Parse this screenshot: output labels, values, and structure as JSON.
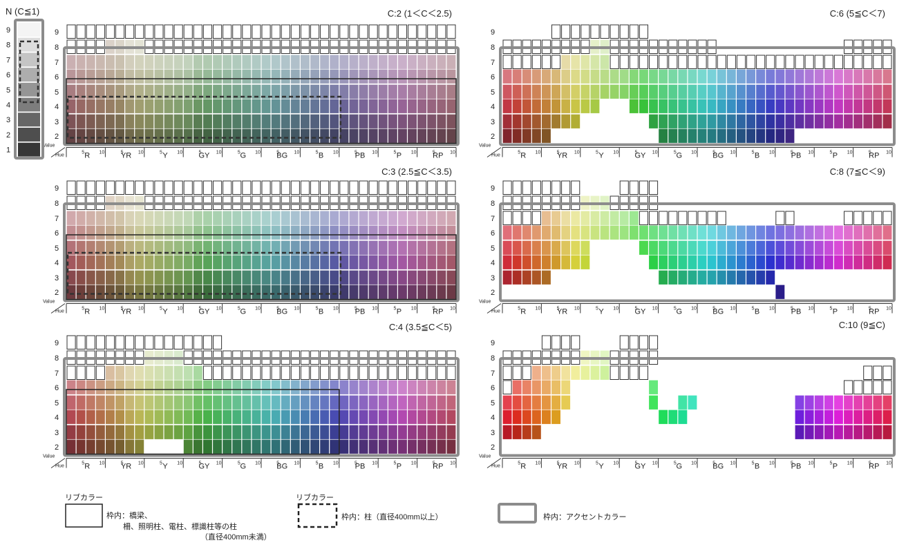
{
  "neutral": {
    "title": "N (C≦1)",
    "values": [
      "9",
      "8",
      "7",
      "6",
      "5",
      "4",
      "3",
      "2",
      "1"
    ]
  },
  "panels": [
    {
      "id": "c2",
      "title": "C:2 (1＜C＜2.5)"
    },
    {
      "id": "c3",
      "title": "C:3 (2.5≦C＜3.5)"
    },
    {
      "id": "c4",
      "title": "C:4 (3.5≦C＜5)"
    },
    {
      "id": "c6",
      "title": "C:6 (5≦C＜7)"
    },
    {
      "id": "c8",
      "title": "C:8 (7≦C＜9)"
    },
    {
      "id": "c10",
      "title": "C:10 (9≦C)"
    }
  ],
  "axis": {
    "value_label": "Value",
    "hue_label": "Hue",
    "values": [
      "9",
      "8",
      "7",
      "6",
      "5",
      "4",
      "3",
      "2"
    ],
    "hue_groups": [
      "R",
      "YR",
      "Y",
      "GY",
      "G",
      "BG",
      "B",
      "PB",
      "P",
      "RP"
    ],
    "hue_5": "5",
    "hue_10": "10"
  },
  "legend": {
    "solid": {
      "title": "リブカラー",
      "line1": "枠内：橋梁、",
      "line2": "柵、照明柱、電柱、標識柱等の柱",
      "line3": "（直径400mm未満）"
    },
    "dashed": {
      "title": "リブカラー",
      "line1": "枠内：柱（直径400mm以上）"
    },
    "gray": {
      "line1": "枠内：アクセントカラー"
    }
  },
  "colors": {
    "accent_frame": "#8c8c8c",
    "rib_frame": "#222222"
  }
}
